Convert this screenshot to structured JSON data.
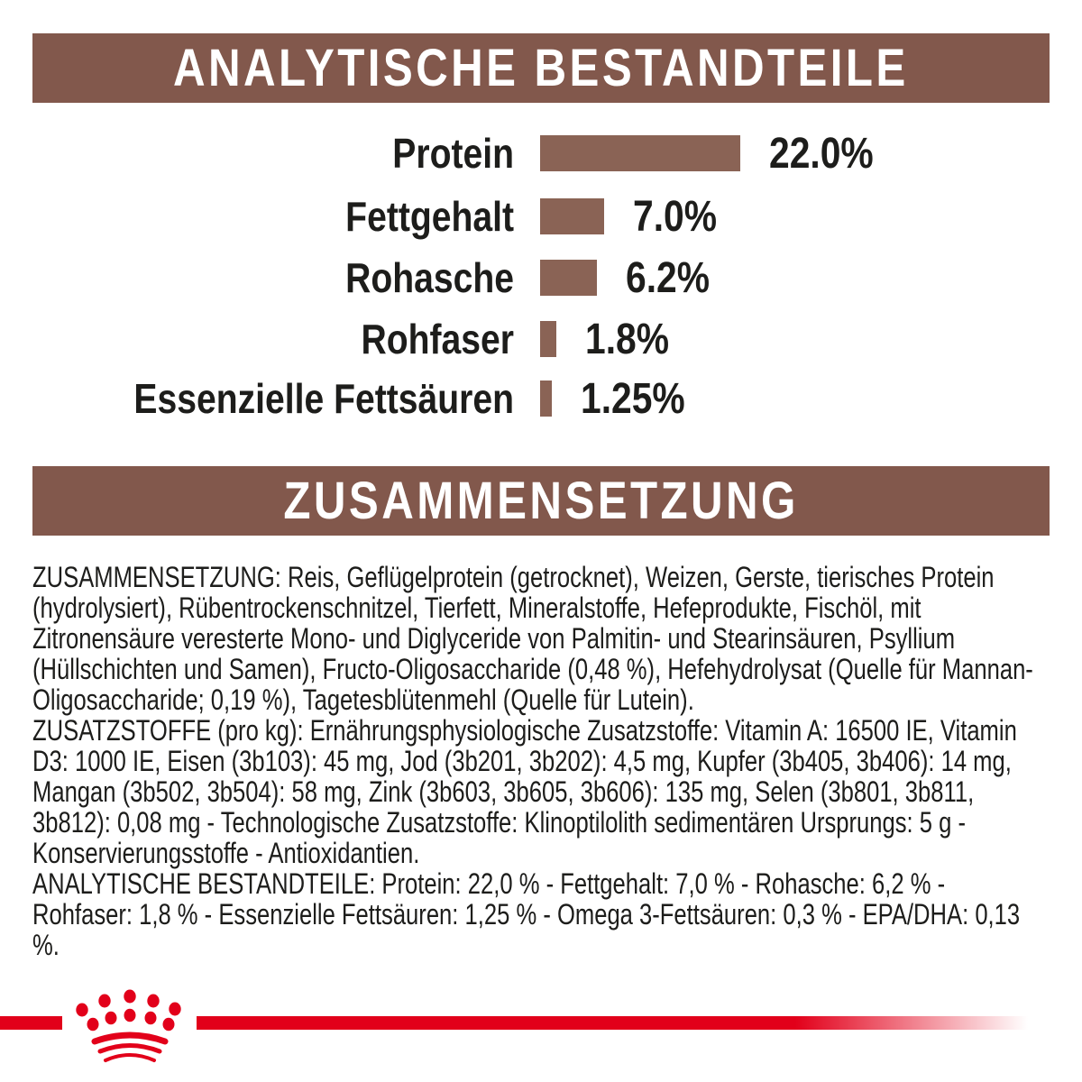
{
  "header1": {
    "title": "ANALYTISCHE BESTANDTEILE"
  },
  "header2": {
    "title": "ZUSAMMENSETZUNG"
  },
  "chart_data": {
    "type": "bar",
    "orientation": "horizontal",
    "title": "ANALYTISCHE BESTANDTEILE",
    "categories": [
      "Protein",
      "Fettgehalt",
      "Rohasche",
      "Rohfaser",
      "Essenzielle Fettsäuren"
    ],
    "values": [
      22.0,
      7.0,
      6.2,
      1.8,
      1.25
    ],
    "value_labels": [
      "22.0%",
      "7.0%",
      "6.2%",
      "1.8%",
      "1.25%"
    ],
    "unit": "%",
    "xlim": [
      0,
      22
    ],
    "bar_color": "#8a6355",
    "grid": false,
    "legend": false
  },
  "composition": {
    "paragraphs": [
      "ZUSAMMENSETZUNG: Reis, Geflügelprotein (getrocknet), Weizen, Gerste, tierisches Protein (hydrolysiert), Rübentrockenschnitzel, Tierfett, Mineralstoffe, Hefeprodukte, Fischöl, mit Zitronensäure veresterte Mono- und Diglyceride von Palmitin- und Stearinsäuren, Psyllium (Hüllschichten und Samen), Fructo-Oligosaccharide (0,48 %), Hefehydrolysat (Quelle für Mannan-Oligosaccharide; 0,19 %), Tagetesblütenmehl (Quelle für Lutein).",
      "ZUSATZSTOFFE (pro kg): Ernährungsphysiologische Zusatzstoffe: Vitamin A: 16500 IE, Vitamin D3: 1000 IE, Eisen (3b103): 45 mg, Jod (3b201, 3b202): 4,5 mg, Kupfer (3b405, 3b406): 14 mg, Mangan (3b502, 3b504): 58 mg, Zink (3b603, 3b605, 3b606): 135 mg, Selen (3b801, 3b811, 3b812): 0,08 mg - Technologische Zusatzstoffe: Klinoptilolith sedimentären Ursprungs: 5 g - Konservierungsstoffe - Antioxidantien.",
      "ANALYTISCHE BESTANDTEILE: Protein: 22,0 % - Fettgehalt: 7,0 % - Rohasche: 6,2 % - Rohfaser: 1,8 % - Essenzielle Fettsäuren: 1,25 % - Omega 3-Fettsäuren: 0,3 % - EPA/DHA: 0,13 %."
    ]
  },
  "brand": {
    "logo_icon": "royal-canin-crown-icon",
    "accent_red": "#e2001a",
    "banner_brown": "#82584c",
    "bar_brown": "#8a6355",
    "page_background": "#ffffff"
  }
}
